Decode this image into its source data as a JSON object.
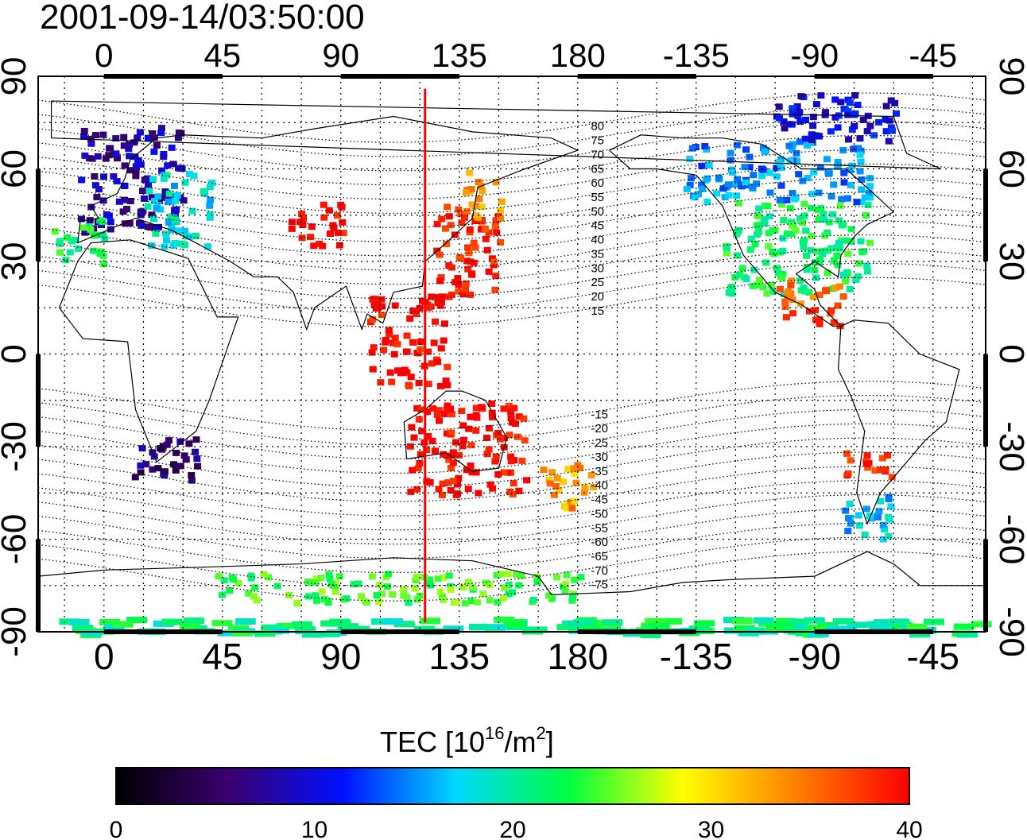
{
  "title": "2001-09-14/03:50:00",
  "colorbar": {
    "label_main": "TEC  [10",
    "label_sup1": "16",
    "label_mid": "/m",
    "label_sup2": "2",
    "label_end": "]",
    "ticks": [
      "0",
      "10",
      "20",
      "30",
      "40"
    ],
    "range": [
      0,
      40
    ],
    "colors": [
      "#000000",
      "#3a0070",
      "#0010ff",
      "#00d8ff",
      "#00ff40",
      "#ffff00",
      "#ff8000",
      "#ff0000"
    ]
  },
  "chart_data": {
    "type": "heatmap",
    "projection": "equirectangular",
    "lon_range": [
      -25,
      335
    ],
    "lat_range": [
      -90,
      90
    ],
    "x_ticks": [
      "0",
      "45",
      "90",
      "135",
      "180",
      "-135",
      "-90",
      "-45"
    ],
    "x_tick_values": [
      0,
      45,
      90,
      135,
      180,
      225,
      270,
      315
    ],
    "y_ticks": [
      "90",
      "60",
      "30",
      "0",
      "-30",
      "-60",
      "-90"
    ],
    "y_tick_values": [
      90,
      60,
      30,
      0,
      -30,
      -60,
      -90
    ],
    "grid": true,
    "red_meridian_lon": 122,
    "magnetic_latitude_labels": [
      "80",
      "75",
      "70",
      "65",
      "60",
      "55",
      "50",
      "45",
      "40",
      "35",
      "30",
      "25",
      "20",
      "15",
      "-15",
      "-20",
      "-25",
      "-30",
      "-35",
      "-40",
      "-45",
      "-50",
      "-55",
      "-60",
      "-65",
      "-70",
      "-75"
    ],
    "tec_regions": [
      {
        "lon": [
          -10,
          30
        ],
        "lat": [
          40,
          75
        ],
        "tec": 8
      },
      {
        "lon": [
          15,
          40
        ],
        "lat": [
          35,
          60
        ],
        "tec": 18
      },
      {
        "lon": [
          -20,
          0
        ],
        "lat": [
          30,
          45
        ],
        "tec": 22
      },
      {
        "lon": [
          70,
          90
        ],
        "lat": [
          35,
          50
        ],
        "tec": 40
      },
      {
        "lon": [
          125,
          150
        ],
        "lat": [
          20,
          50
        ],
        "tec": 39
      },
      {
        "lon": [
          135,
          150
        ],
        "lat": [
          45,
          60
        ],
        "tec": 33
      },
      {
        "lon": [
          100,
          130
        ],
        "lat": [
          -10,
          20
        ],
        "tec": 40
      },
      {
        "lon": [
          115,
          160
        ],
        "lat": [
          -45,
          -15
        ],
        "tec": 40
      },
      {
        "lon": [
          165,
          185
        ],
        "lat": [
          -50,
          -35
        ],
        "tec": 33
      },
      {
        "lon": [
          10,
          35
        ],
        "lat": [
          -40,
          -25
        ],
        "tec": 6
      },
      {
        "lon": [
          235,
          290
        ],
        "lat": [
          20,
          50
        ],
        "tec": 22
      },
      {
        "lon": [
          220,
          290
        ],
        "lat": [
          50,
          70
        ],
        "tec": 15
      },
      {
        "lon": [
          250,
          300
        ],
        "lat": [
          70,
          85
        ],
        "tec": 10
      },
      {
        "lon": [
          280,
          300
        ],
        "lat": [
          -40,
          -30
        ],
        "tec": 39
      },
      {
        "lon": [
          280,
          300
        ],
        "lat": [
          -60,
          -45
        ],
        "tec": 17
      },
      {
        "lon": [
          255,
          280
        ],
        "lat": [
          10,
          25
        ],
        "tec": 36
      },
      {
        "lon": [
          40,
          180
        ],
        "lat": [
          -80,
          -70
        ],
        "tec": 24
      },
      {
        "lon": [
          -20,
          330
        ],
        "lat": [
          -90,
          -85
        ],
        "tec": 21
      }
    ]
  }
}
